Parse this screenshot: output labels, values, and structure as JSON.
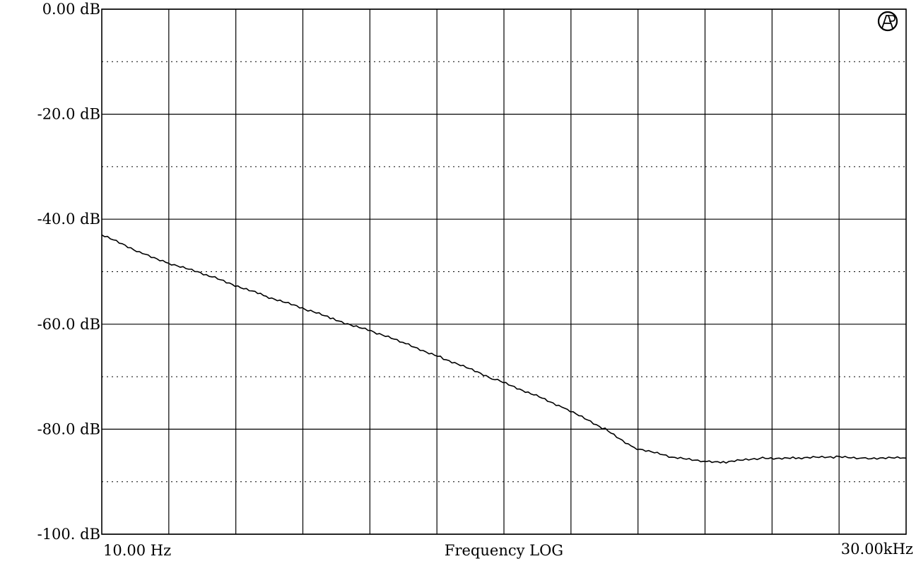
{
  "chart_data": {
    "type": "line",
    "title": "",
    "xlabel": "Frequency LOG",
    "ylabel": "",
    "x_scale": "log",
    "x_range": [
      10,
      30000
    ],
    "x_range_labels": [
      "10.00 Hz",
      "30.00kHz"
    ],
    "ylim": [
      -100,
      0
    ],
    "y_tick_values": [
      0,
      -20,
      -40,
      -60,
      -80,
      -100
    ],
    "y_tick_labels": [
      "0.00 dB",
      "-20.0 dB",
      "-40.0 dB",
      "-60.0 dB",
      "-80.0 dB",
      "-100. dB"
    ],
    "grid": true,
    "legend": null,
    "series": [
      {
        "color": "#000000",
        "x": [
          10,
          15,
          20,
          30,
          50,
          80,
          100,
          150,
          200,
          300,
          500,
          800,
          1000,
          1500,
          2000,
          3000,
          4000,
          5000,
          7000,
          10000,
          15000,
          20000,
          30000
        ],
        "y": [
          -43,
          -46.5,
          -48.5,
          -51,
          -54.5,
          -57.5,
          -59,
          -61.5,
          -63.5,
          -66.5,
          -70.5,
          -74,
          -76,
          -80,
          -83.5,
          -85.5,
          -86,
          -86.3,
          -85.5,
          -85.5,
          -85.3,
          -85.5,
          -85.5
        ]
      }
    ],
    "logo": "ap-audio-precision-logo"
  }
}
